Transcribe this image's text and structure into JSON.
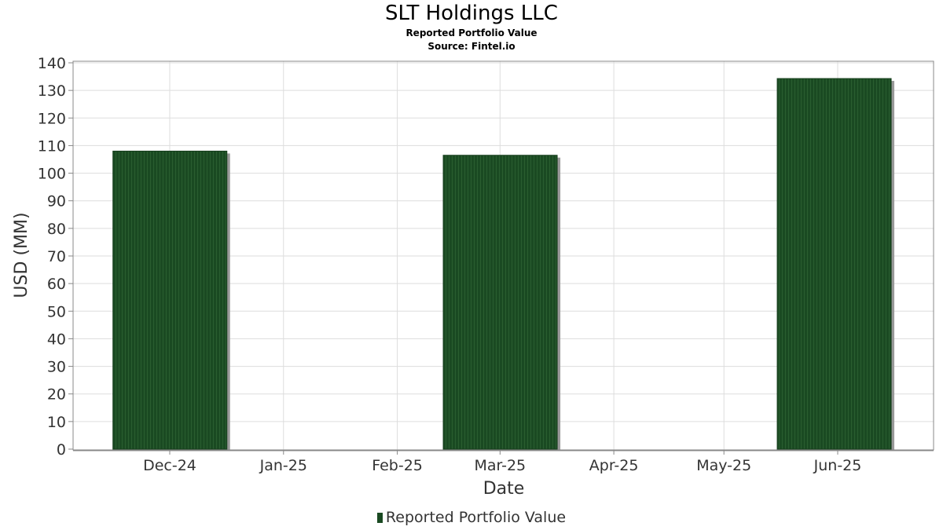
{
  "chart_data": {
    "type": "bar",
    "title": "SLT Holdings LLC",
    "subtitle": "Reported Portfolio Value",
    "source": "Source: Fintel.io",
    "xlabel": "Date",
    "ylabel": "USD (MM)",
    "x_ticks": [
      "Dec-24",
      "Jan-25",
      "Feb-25",
      "Mar-25",
      "Apr-25",
      "May-25",
      "Jun-25"
    ],
    "y_ticks": [
      0,
      10,
      20,
      30,
      40,
      50,
      60,
      70,
      80,
      90,
      100,
      110,
      120,
      130,
      140
    ],
    "ylim": [
      0,
      140
    ],
    "grid": true,
    "legend_position": "bottom",
    "series": [
      {
        "name": "Reported Portfolio Value",
        "color": "#1a4a22",
        "points": [
          {
            "date": "2024-12-31",
            "value": 108
          },
          {
            "date": "2025-03-31",
            "value": 106.5
          },
          {
            "date": "2025-06-30",
            "value": 134.3
          }
        ]
      }
    ]
  }
}
